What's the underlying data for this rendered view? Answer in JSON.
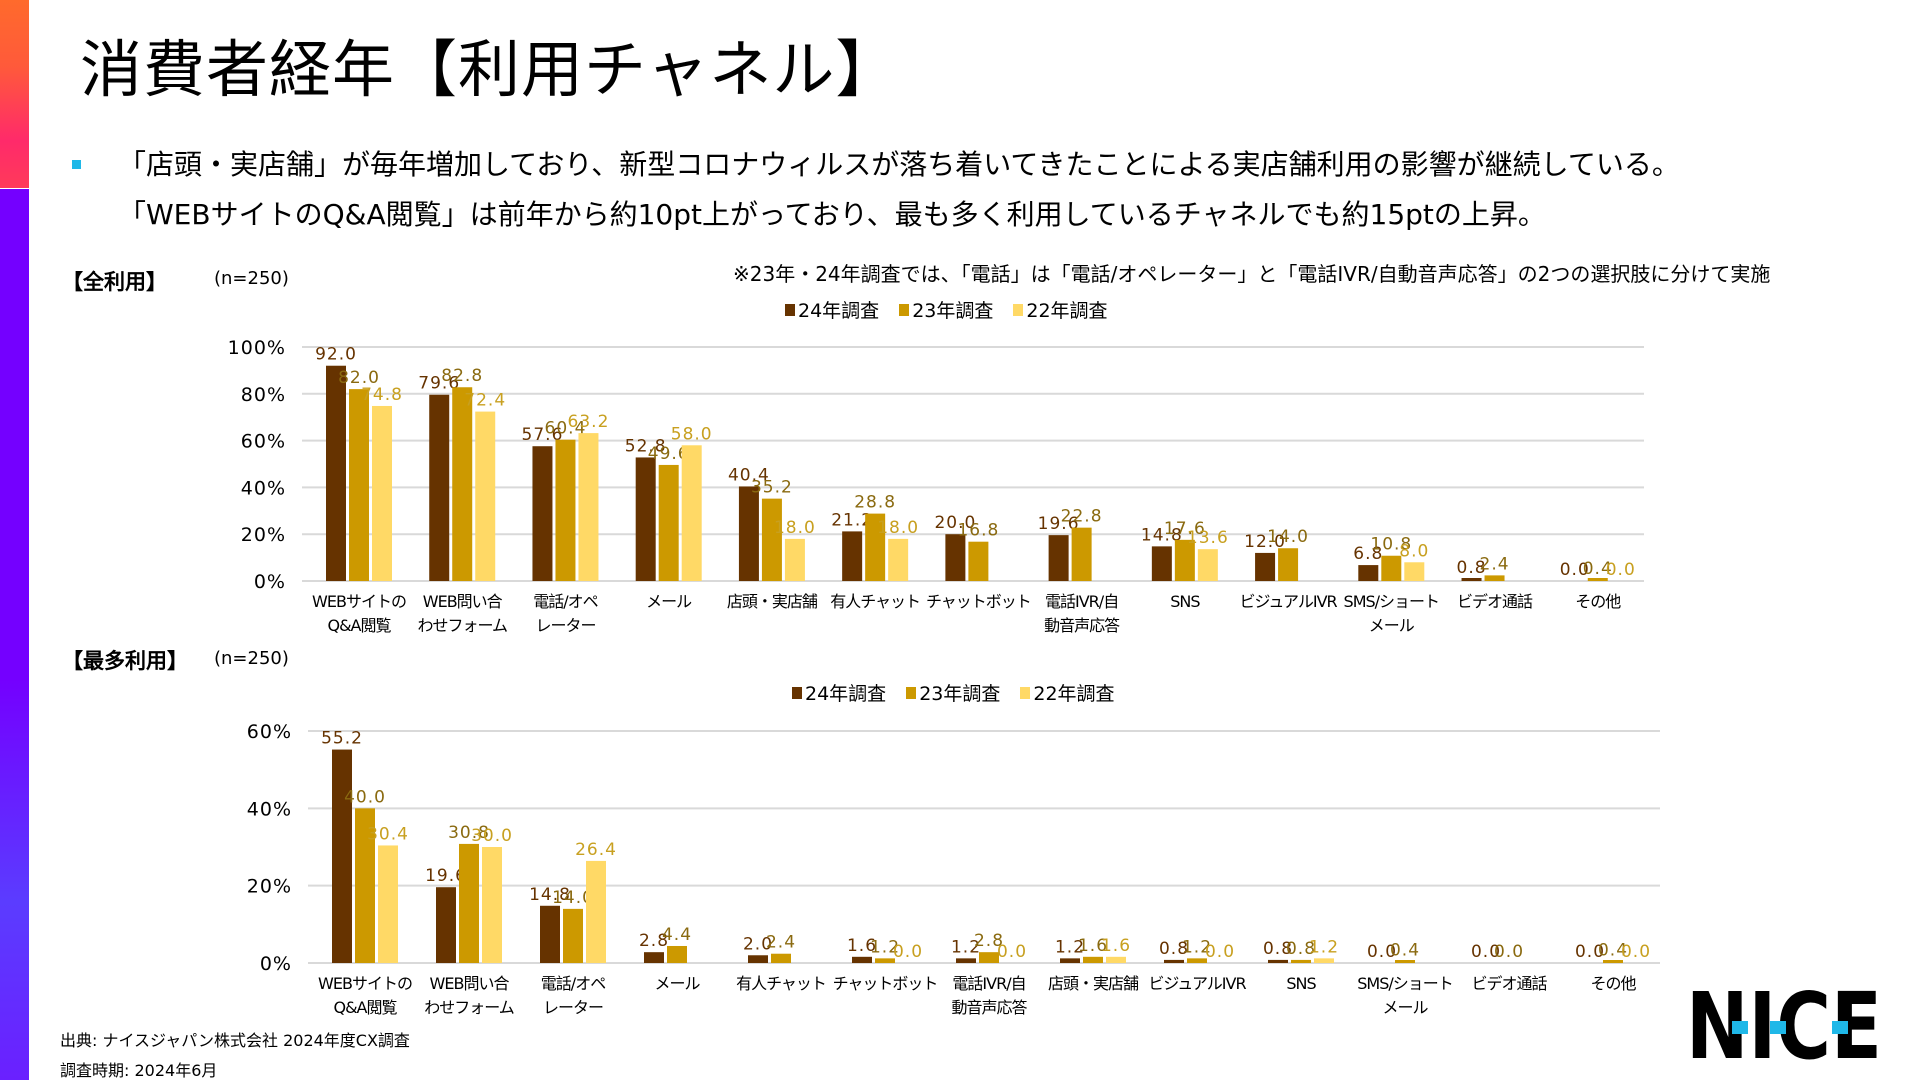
{
  "page": {
    "title": "消費者経年【利用チャネル】",
    "bullets": [
      "「店頭・実店舗」が毎年増加しており、新型コロナウィルスが落ち着いてきたことによる実店舗利用の影響が継続している。",
      "「WEBサイトのQ&A閲覧」は前年から約10pt上がっており、最も多く利用しているチャネルでも約15ptの上昇。"
    ],
    "note": "※23年・24年調査では、「電話」は「電話/オペレーター」と「電話IVR/自動音声応答」の2つの選択肢に分けて実施",
    "footer": {
      "source": "出典: ナイスジャパン株式会社 2024年度CX調査",
      "period": "調査時期: 2024年6月"
    },
    "logo": "NICE",
    "colors": {
      "y24": "#663300",
      "y23": "#cc9900",
      "y22": "#ffd966",
      "label24": "#663300",
      "label23": "#8a6a10",
      "label22": "#c8a020",
      "accent": "#1fb8e8",
      "grid": "#d9d9d9"
    }
  },
  "chart_data": [
    {
      "type": "bar",
      "section_label": "【全利用】",
      "n_label": "(n=250)",
      "ylim": [
        0,
        100
      ],
      "yticks": [
        "0%",
        "20%",
        "40%",
        "60%",
        "80%",
        "100%"
      ],
      "grid": true,
      "legend": [
        "24年調査",
        "23年調査",
        "22年調査"
      ],
      "legend_position": "top-center",
      "categories": [
        [
          "WEBサイトの",
          "Q&A閲覧"
        ],
        [
          "WEB問い合",
          "わせフォーム"
        ],
        [
          "電話/オペ",
          "レーター"
        ],
        [
          "メール"
        ],
        [
          "店頭・実店舗"
        ],
        [
          "有人チャット"
        ],
        [
          "チャットボット"
        ],
        [
          "電話IVR/自",
          "動音声応答"
        ],
        [
          "SNS"
        ],
        [
          "ビジュアルIVR"
        ],
        [
          "SMS/ショート",
          "メール"
        ],
        [
          "ビデオ通話"
        ],
        [
          "その他"
        ]
      ],
      "series": [
        {
          "name": "24年調査",
          "values": [
            92.0,
            79.6,
            57.6,
            52.8,
            40.4,
            21.2,
            20.0,
            19.6,
            14.8,
            12.0,
            6.8,
            0.8,
            0.0
          ]
        },
        {
          "name": "23年調査",
          "values": [
            82.0,
            82.8,
            60.4,
            49.6,
            35.2,
            28.8,
            16.8,
            22.8,
            17.6,
            14.0,
            10.8,
            2.4,
            0.4
          ]
        },
        {
          "name": "22年調査",
          "values": [
            74.8,
            72.4,
            63.2,
            58.0,
            18.0,
            18.0,
            null,
            null,
            13.6,
            null,
            8.0,
            null,
            0.0
          ]
        }
      ]
    },
    {
      "type": "bar",
      "section_label": "【最多利用】",
      "n_label": "(n=250)",
      "ylim": [
        0,
        60
      ],
      "yticks": [
        "0%",
        "20%",
        "40%",
        "60%"
      ],
      "grid": true,
      "legend": [
        "24年調査",
        "23年調査",
        "22年調査"
      ],
      "legend_position": "top-center",
      "categories": [
        [
          "WEBサイトの",
          "Q&A閲覧"
        ],
        [
          "WEB問い合",
          "わせフォーム"
        ],
        [
          "電話/オペ",
          "レーター"
        ],
        [
          "メール"
        ],
        [
          "有人チャット"
        ],
        [
          "チャットボット"
        ],
        [
          "電話IVR/自",
          "動音声応答"
        ],
        [
          "店頭・実店舗"
        ],
        [
          "ビジュアルIVR"
        ],
        [
          "SNS"
        ],
        [
          "SMS/ショート",
          "メール"
        ],
        [
          "ビデオ通話"
        ],
        [
          "その他"
        ]
      ],
      "series": [
        {
          "name": "24年調査",
          "values": [
            55.2,
            19.6,
            14.8,
            2.8,
            2.0,
            1.6,
            1.2,
            1.2,
            0.8,
            0.8,
            0.0,
            0.0,
            0.0
          ]
        },
        {
          "name": "23年調査",
          "values": [
            40.0,
            30.8,
            14.0,
            4.4,
            2.4,
            1.2,
            2.8,
            1.6,
            1.2,
            0.8,
            0.4,
            0.0,
            0.4
          ]
        },
        {
          "name": "22年調査",
          "values": [
            30.4,
            30.0,
            26.4,
            null,
            null,
            0.0,
            0.0,
            1.6,
            0.0,
            1.2,
            null,
            null,
            0.0
          ]
        }
      ]
    }
  ]
}
